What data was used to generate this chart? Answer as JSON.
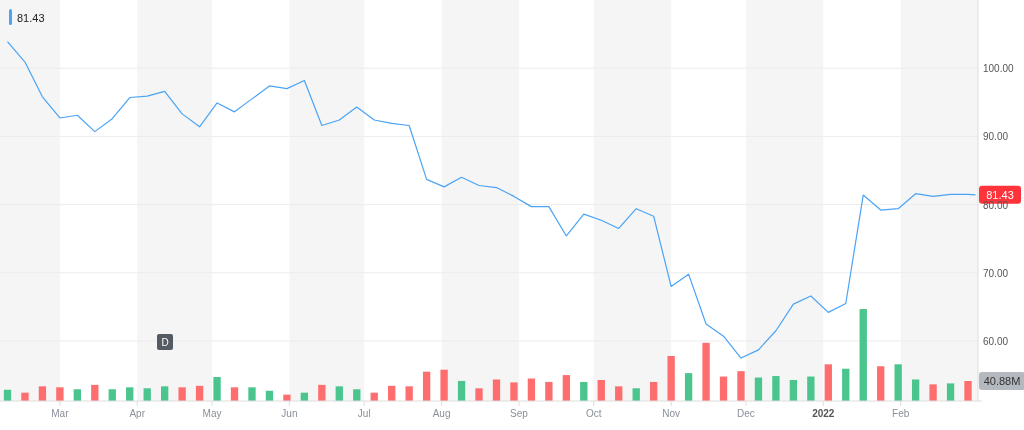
{
  "chart_data": {
    "type": "line",
    "x": [
      "2021-02-08",
      "2021-02-15",
      "2021-02-22",
      "2021-03-01",
      "2021-03-08",
      "2021-03-15",
      "2021-03-22",
      "2021-03-29",
      "2021-04-05",
      "2021-04-12",
      "2021-04-19",
      "2021-04-26",
      "2021-05-03",
      "2021-05-10",
      "2021-05-17",
      "2021-05-24",
      "2021-05-31",
      "2021-06-07",
      "2021-06-14",
      "2021-06-21",
      "2021-06-28",
      "2021-07-05",
      "2021-07-12",
      "2021-07-19",
      "2021-07-26",
      "2021-08-02",
      "2021-08-09",
      "2021-08-16",
      "2021-08-23",
      "2021-08-30",
      "2021-09-06",
      "2021-09-13",
      "2021-09-20",
      "2021-09-27",
      "2021-10-04",
      "2021-10-11",
      "2021-10-18",
      "2021-10-25",
      "2021-11-01",
      "2021-11-08",
      "2021-11-15",
      "2021-11-22",
      "2021-11-29",
      "2021-12-06",
      "2021-12-13",
      "2021-12-20",
      "2021-12-27",
      "2022-01-03",
      "2022-01-10",
      "2022-01-17",
      "2022-01-24",
      "2022-01-31",
      "2022-02-07",
      "2022-02-14",
      "2022-02-21",
      "2022-02-28",
      "2022-03-03"
    ],
    "series": [
      {
        "color": "#4aa3f5",
        "values": [
          103.9,
          100.9,
          95.8,
          92.7,
          93.1,
          90.7,
          92.6,
          95.7,
          95.9,
          96.6,
          93.3,
          91.4,
          94.9,
          93.6,
          95.5,
          97.4,
          97.0,
          98.2,
          91.6,
          92.4,
          94.3,
          92.4,
          91.9,
          91.6,
          83.7,
          82.6,
          84.0,
          82.8,
          82.5,
          81.2,
          79.7,
          79.7,
          75.4,
          78.6,
          77.7,
          76.5,
          79.4,
          78.3,
          68.0,
          69.8,
          62.5,
          60.7,
          57.5,
          58.7,
          61.5,
          65.4,
          66.6,
          64.2,
          65.5,
          81.4,
          79.2,
          79.4,
          81.6,
          81.2,
          81.5,
          81.5,
          81.43
        ],
        "value_labels": [
          null,
          null,
          null,
          null,
          null,
          null,
          null,
          null,
          null,
          null,
          null,
          null,
          null,
          null,
          null,
          null,
          null,
          null,
          null,
          null,
          null,
          null,
          null,
          null,
          null,
          null,
          null,
          null,
          null,
          null,
          null,
          null,
          null,
          null,
          null,
          null,
          null,
          null,
          null,
          null,
          null,
          null,
          null,
          null,
          null,
          null,
          null,
          null,
          null,
          null,
          null,
          null,
          null,
          null,
          null,
          null,
          "81.43"
        ]
      },
      {
        "type": "bar",
        "axis": "y2",
        "x": [
          "2021-02-08",
          "2021-02-15",
          "2021-02-22",
          "2021-03-01",
          "2021-03-08",
          "2021-03-15",
          "2021-03-22",
          "2021-03-29",
          "2021-04-05",
          "2021-04-12",
          "2021-04-19",
          "2021-04-26",
          "2021-05-03",
          "2021-05-10",
          "2021-05-17",
          "2021-05-24",
          "2021-05-31",
          "2021-06-07",
          "2021-06-14",
          "2021-06-21",
          "2021-06-28",
          "2021-07-05",
          "2021-07-12",
          "2021-07-19",
          "2021-07-26",
          "2021-08-02",
          "2021-08-09",
          "2021-08-16",
          "2021-08-23",
          "2021-08-30",
          "2021-09-06",
          "2021-09-13",
          "2021-09-20",
          "2021-09-27",
          "2021-10-04",
          "2021-10-11",
          "2021-10-18",
          "2021-10-25",
          "2021-11-01",
          "2021-11-08",
          "2021-11-15",
          "2021-11-22",
          "2021-11-29",
          "2021-12-06",
          "2021-12-13",
          "2021-12-20",
          "2021-12-27",
          "2022-01-03",
          "2022-01-10",
          "2022-01-17",
          "2022-01-24",
          "2022-01-31",
          "2022-02-07",
          "2022-02-14",
          "2022-02-21",
          "2022-02-28"
        ],
        "values": [
          23,
          17,
          30,
          28,
          24,
          33,
          24,
          28,
          26,
          30,
          28,
          31,
          49,
          28,
          28,
          21,
          13,
          17,
          33,
          30,
          24,
          17,
          31,
          30,
          60,
          64,
          41,
          26,
          44,
          38,
          46,
          39,
          53,
          39,
          43,
          30,
          26,
          39,
          92,
          57,
          119,
          50,
          61,
          48,
          51,
          43,
          50,
          75,
          66,
          188,
          71,
          75,
          44,
          34,
          36,
          40.88
        ],
        "colors": [
          "#4bc58e",
          "#ff6e6e",
          "#ff6e6e",
          "#ff6e6e",
          "#4bc58e",
          "#ff6e6e",
          "#4bc58e",
          "#4bc58e",
          "#4bc58e",
          "#4bc58e",
          "#ff6e6e",
          "#ff6e6e",
          "#4bc58e",
          "#ff6e6e",
          "#4bc58e",
          "#4bc58e",
          "#ff6e6e",
          "#4bc58e",
          "#ff6e6e",
          "#4bc58e",
          "#4bc58e",
          "#ff6e6e",
          "#ff6e6e",
          "#ff6e6e",
          "#ff6e6e",
          "#ff6e6e",
          "#4bc58e",
          "#ff6e6e",
          "#ff6e6e",
          "#ff6e6e",
          "#ff6e6e",
          "#ff6e6e",
          "#ff6e6e",
          "#4bc58e",
          "#ff6e6e",
          "#ff6e6e",
          "#4bc58e",
          "#ff6e6e",
          "#ff6e6e",
          "#4bc58e",
          "#ff6e6e",
          "#ff6e6e",
          "#ff6e6e",
          "#4bc58e",
          "#4bc58e",
          "#4bc58e",
          "#4bc58e",
          "#ff6e6e",
          "#4bc58e",
          "#4bc58e",
          "#ff6e6e",
          "#4bc58e",
          "#4bc58e",
          "#ff6e6e",
          "#4bc58e",
          "#ff6e6e"
        ]
      }
    ],
    "xlim": [
      "2021-02-05",
      "2022-03-04"
    ],
    "xticks": [
      {
        "value": "2021-03-01",
        "label": "Mar"
      },
      {
        "value": "2021-04-01",
        "label": "Apr"
      },
      {
        "value": "2021-05-01",
        "label": "May"
      },
      {
        "value": "2021-06-01",
        "label": "Jun"
      },
      {
        "value": "2021-07-01",
        "label": "Jul"
      },
      {
        "value": "2021-08-01",
        "label": "Aug"
      },
      {
        "value": "2021-09-01",
        "label": "Sep"
      },
      {
        "value": "2021-10-01",
        "label": "Oct"
      },
      {
        "value": "2021-11-01",
        "label": "Nov"
      },
      {
        "value": "2021-12-01",
        "label": "Dec"
      },
      {
        "value": "2022-01-01",
        "label": "2022"
      },
      {
        "value": "2022-02-01",
        "label": "Feb"
      }
    ],
    "ylim": [
      51.2,
      110
    ],
    "yticks": [
      {
        "value": 60,
        "label": "60.00"
      },
      {
        "value": 70,
        "label": "70.00"
      },
      {
        "value": 80,
        "label": "80.00"
      },
      {
        "value": 90,
        "label": "90.00"
      },
      {
        "value": 100,
        "label": "100.00"
      }
    ],
    "y2lim": [
      0,
      820
    ],
    "y2ticks": [
      {
        "value": 0,
        "label": null
      },
      {
        "value": 40.88,
        "label": "40.88M"
      }
    ],
    "bands": [
      {
        "axis": "x",
        "from": "2021-02-05",
        "to": "2021-03-01",
        "color": "#f5f5f5"
      },
      {
        "axis": "x",
        "from": "2021-04-01",
        "to": "2021-05-01",
        "color": "#f5f5f5"
      },
      {
        "axis": "x",
        "from": "2021-06-01",
        "to": "2021-07-01",
        "color": "#f5f5f5"
      },
      {
        "axis": "x",
        "from": "2021-08-01",
        "to": "2021-09-01",
        "color": "#f5f5f5"
      },
      {
        "axis": "x",
        "from": "2021-10-01",
        "to": "2021-11-01",
        "color": "#f5f5f5"
      },
      {
        "axis": "x",
        "from": "2021-12-01",
        "to": "2022-01-01",
        "color": "#f5f5f5"
      },
      {
        "axis": "x",
        "from": "2022-02-01",
        "to": "2022-03-04",
        "color": "#f5f5f5"
      }
    ],
    "grid": "y",
    "annotations": [
      "81.43",
      "D"
    ]
  }
}
